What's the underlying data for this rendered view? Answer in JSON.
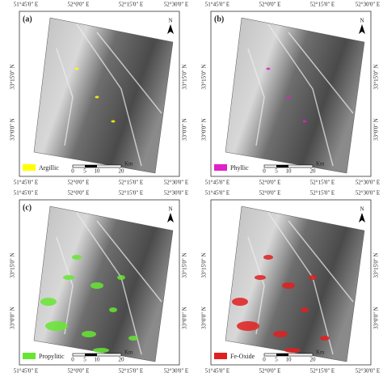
{
  "panels": [
    {
      "label": "(a)",
      "legend": "Argillic",
      "color": "#ffff00",
      "top_ticks": [
        "51°45'0\" E",
        "52°0'0\" E",
        "52°15'0\" E",
        "52°30'0\" E"
      ],
      "bottom_ticks": [
        "51°45'0\" E",
        "52°0'0\" E",
        "52°15'0\" E",
        "52°30'0\" E"
      ],
      "left_ticks": [
        "33°15'0\" N",
        "33°0'0\" N"
      ],
      "right_ticks": [
        "33°15'0\" N",
        "33°0'0\" N"
      ],
      "scale": [
        "0",
        "5",
        "10",
        "20"
      ],
      "unit": "Km",
      "north": "N"
    },
    {
      "label": "(b)",
      "legend": "Phyllic",
      "color": "#e020c8",
      "top_ticks": [
        "51°45'0\" E",
        "52°0'0\" E",
        "52°15'0\" E",
        "52°30'0\" E"
      ],
      "bottom_ticks": [
        "51°45'0\" E",
        "52°0'0\" E",
        "52°15'0\" E",
        "52°30'0\" E"
      ],
      "left_ticks": [
        "33°15'0\" N",
        "33°0'0\" N"
      ],
      "right_ticks": [
        "33°15'0\" N",
        "33°0'0\" N"
      ],
      "scale": [
        "0",
        "5",
        "10",
        "20"
      ],
      "unit": "Km",
      "north": "N"
    },
    {
      "label": "(c)",
      "legend": "Propylitic",
      "color": "#66e633",
      "top_ticks": [
        "51°45'0\" E",
        "52°0'0\" E",
        "52°15'0\" E",
        "52°30'0\" E"
      ],
      "bottom_ticks": [
        "51°45'0\" E",
        "52°0'0\" E",
        "52°15'0\" E",
        "52°30'0\" E"
      ],
      "left_ticks": [
        "33°15'0\" N",
        "33°0'0\" N"
      ],
      "right_ticks": [
        "33°15'0\" N",
        "33°0'0\" N"
      ],
      "scale": [
        "0",
        "5",
        "10",
        "20"
      ],
      "unit": "Km",
      "north": "N"
    },
    {
      "legend": "Fe-Oxide",
      "color": "#e02020",
      "top_ticks": [
        "51°45'0\" E",
        "52°0'0\" E",
        "52°15'0\" E",
        "52°30'0\" E"
      ],
      "bottom_ticks": [
        "51°45'0\" E",
        "52°0'0\" E",
        "52°15'0\" E",
        "52°30'0\" E"
      ],
      "left_ticks": [
        "33°15'0\" N",
        "33°0'0\" N"
      ],
      "right_ticks": [
        "33°15'0\" N",
        "33°0'0\" N"
      ],
      "scale": [
        "0",
        "5",
        "10",
        "20"
      ],
      "unit": "Km",
      "north": "N"
    }
  ]
}
